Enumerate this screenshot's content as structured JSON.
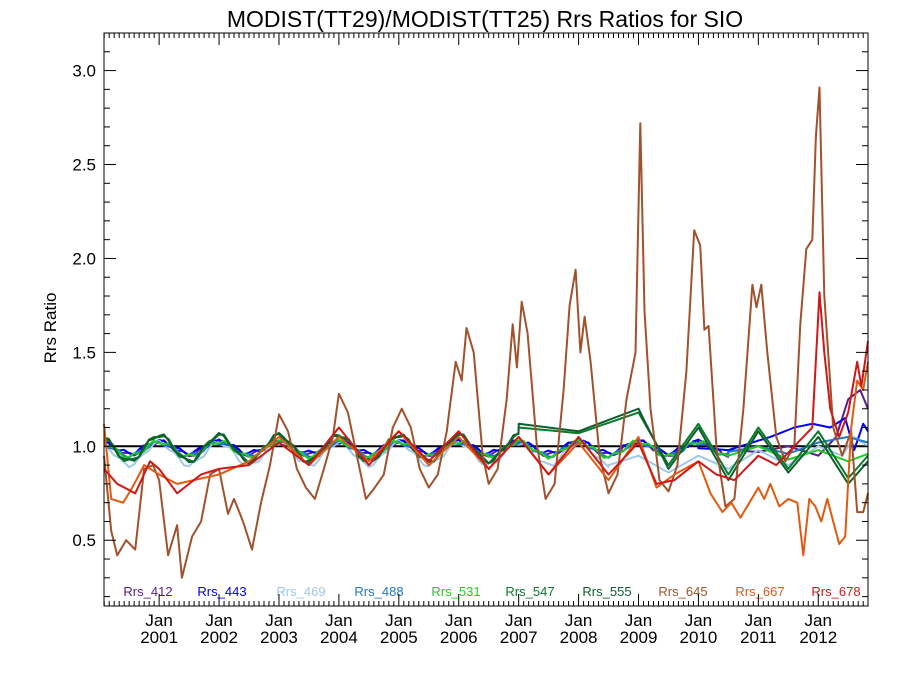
{
  "chart_data": {
    "type": "line",
    "title": "MODIST(TT29)/MODIST(TT25)  Rrs Ratios for SIO",
    "xlabel": "",
    "ylabel": "Rrs Ratio",
    "xlim": [
      2000.08,
      2012.83
    ],
    "ylim": [
      0.15,
      3.2
    ],
    "yticks": [
      0.5,
      1.0,
      1.5,
      2.0,
      2.5,
      3.0
    ],
    "ytick_labels": [
      "0.5",
      "1.0",
      "1.5",
      "2.0",
      "2.5",
      "3.0"
    ],
    "xticks": [
      2001,
      2002,
      2003,
      2004,
      2005,
      2006,
      2007,
      2008,
      2009,
      2010,
      2011,
      2012
    ],
    "xtick_labels": [
      [
        "Jan",
        "2001"
      ],
      [
        "Jan",
        "2002"
      ],
      [
        "Jan",
        "2003"
      ],
      [
        "Jan",
        "2004"
      ],
      [
        "Jan",
        "2005"
      ],
      [
        "Jan",
        "2006"
      ],
      [
        "Jan",
        "2007"
      ],
      [
        "Jan",
        "2008"
      ],
      [
        "Jan",
        "2009"
      ],
      [
        "Jan",
        "2010"
      ],
      [
        "Jan",
        "2011"
      ],
      [
        "Jan",
        "2012"
      ]
    ],
    "reference_line": 1.0,
    "legend_position": "bottom",
    "grid": false,
    "series": [
      {
        "name": "Rrs_412",
        "color": "#5b1a8f",
        "baseline": 0.99,
        "amp": 0.035,
        "points": [
          [
            2010.5,
            0.98
          ],
          [
            2011.0,
            0.97
          ],
          [
            2011.5,
            1.0
          ],
          [
            2012.0,
            0.95
          ],
          [
            2012.3,
            1.05
          ],
          [
            2012.5,
            1.25
          ],
          [
            2012.7,
            1.3
          ],
          [
            2012.83,
            1.2
          ]
        ]
      },
      {
        "name": "Rrs_443",
        "color": "#0000ee",
        "baseline": 0.995,
        "amp": 0.03,
        "points": [
          [
            2010.0,
            0.99
          ],
          [
            2010.5,
            0.98
          ],
          [
            2011.2,
            1.05
          ],
          [
            2011.6,
            1.1
          ],
          [
            2011.9,
            1.12
          ],
          [
            2012.2,
            1.1
          ],
          [
            2012.45,
            1.15
          ],
          [
            2012.6,
            0.98
          ],
          [
            2012.75,
            1.12
          ],
          [
            2012.83,
            1.08
          ]
        ]
      },
      {
        "name": "Rrs_469",
        "color": "#a0c8e8",
        "baseline": 0.96,
        "amp": 0.06,
        "points": [
          [
            2008.5,
            0.9
          ],
          [
            2009.0,
            0.95
          ],
          [
            2009.5,
            0.86
          ],
          [
            2010.0,
            0.95
          ],
          [
            2010.5,
            0.88
          ],
          [
            2011.0,
            0.98
          ],
          [
            2011.5,
            0.9
          ],
          [
            2012.0,
            1.0
          ],
          [
            2012.4,
            0.95
          ],
          [
            2012.6,
            1.05
          ],
          [
            2012.83,
            1.0
          ]
        ]
      },
      {
        "name": "Rrs_488",
        "color": "#1e78c8",
        "baseline": 0.985,
        "amp": 0.035,
        "points": [
          [
            2010.5,
            0.97
          ],
          [
            2011.0,
            1.0
          ],
          [
            2011.5,
            0.96
          ],
          [
            2012.0,
            1.02
          ],
          [
            2012.5,
            1.05
          ],
          [
            2012.83,
            1.02
          ]
        ]
      },
      {
        "name": "Rrs_531",
        "color": "#22cc22",
        "baseline": 0.985,
        "amp": 0.04,
        "points": [
          [
            2010.5,
            0.95
          ],
          [
            2011.0,
            1.0
          ],
          [
            2011.5,
            0.93
          ],
          [
            2012.0,
            0.98
          ],
          [
            2012.5,
            0.92
          ],
          [
            2012.83,
            0.96
          ]
        ]
      },
      {
        "name": "Rrs_547",
        "color": "#0a7a2a",
        "baseline": 0.99,
        "amp": 0.07,
        "points": [
          [
            2007.0,
            1.1
          ],
          [
            2008.0,
            1.07
          ],
          [
            2009.0,
            1.18
          ],
          [
            2009.5,
            0.9
          ],
          [
            2010.0,
            1.12
          ],
          [
            2010.5,
            0.85
          ],
          [
            2011.0,
            1.1
          ],
          [
            2011.5,
            0.88
          ],
          [
            2012.0,
            1.08
          ],
          [
            2012.5,
            0.83
          ],
          [
            2012.83,
            0.95
          ]
        ]
      },
      {
        "name": "Rrs_555",
        "color": "#0e5e2e",
        "baseline": 0.99,
        "amp": 0.07,
        "points": [
          [
            2007.0,
            1.12
          ],
          [
            2008.0,
            1.08
          ],
          [
            2009.0,
            1.2
          ],
          [
            2009.5,
            0.88
          ],
          [
            2010.0,
            1.1
          ],
          [
            2010.5,
            0.82
          ],
          [
            2011.0,
            1.08
          ],
          [
            2011.5,
            0.86
          ],
          [
            2012.0,
            1.05
          ],
          [
            2012.5,
            0.8
          ],
          [
            2012.83,
            0.92
          ]
        ]
      },
      {
        "name": "Rrs_645",
        "color": "#a0522d",
        "baseline": 0.85,
        "amp": 0.35,
        "points": [
          [
            2000.08,
            0.95
          ],
          [
            2000.2,
            0.55
          ],
          [
            2000.3,
            0.42
          ],
          [
            2000.45,
            0.5
          ],
          [
            2000.6,
            0.45
          ],
          [
            2000.75,
            0.88
          ],
          [
            2000.9,
            0.9
          ],
          [
            2001.0,
            0.82
          ],
          [
            2001.15,
            0.42
          ],
          [
            2001.3,
            0.58
          ],
          [
            2001.38,
            0.3
          ],
          [
            2001.55,
            0.52
          ],
          [
            2001.7,
            0.6
          ],
          [
            2001.85,
            0.85
          ],
          [
            2002.0,
            0.88
          ],
          [
            2002.15,
            0.64
          ],
          [
            2002.25,
            0.72
          ],
          [
            2002.4,
            0.6
          ],
          [
            2002.55,
            0.45
          ],
          [
            2002.7,
            0.7
          ],
          [
            2002.85,
            0.9
          ],
          [
            2003.0,
            1.17
          ],
          [
            2003.15,
            1.08
          ],
          [
            2003.3,
            0.88
          ],
          [
            2003.45,
            0.78
          ],
          [
            2003.6,
            0.72
          ],
          [
            2003.75,
            0.88
          ],
          [
            2003.9,
            1.05
          ],
          [
            2004.0,
            1.28
          ],
          [
            2004.15,
            1.18
          ],
          [
            2004.3,
            0.95
          ],
          [
            2004.45,
            0.72
          ],
          [
            2004.6,
            0.78
          ],
          [
            2004.75,
            0.85
          ],
          [
            2004.9,
            1.1
          ],
          [
            2005.05,
            1.2
          ],
          [
            2005.2,
            1.1
          ],
          [
            2005.35,
            0.88
          ],
          [
            2005.5,
            0.78
          ],
          [
            2005.65,
            0.85
          ],
          [
            2005.8,
            1.08
          ],
          [
            2005.95,
            1.45
          ],
          [
            2006.05,
            1.35
          ],
          [
            2006.13,
            1.63
          ],
          [
            2006.25,
            1.5
          ],
          [
            2006.4,
            0.95
          ],
          [
            2006.5,
            0.8
          ],
          [
            2006.65,
            0.88
          ],
          [
            2006.8,
            1.25
          ],
          [
            2006.9,
            1.65
          ],
          [
            2006.97,
            1.42
          ],
          [
            2007.05,
            1.77
          ],
          [
            2007.15,
            1.6
          ],
          [
            2007.3,
            1.02
          ],
          [
            2007.45,
            0.72
          ],
          [
            2007.6,
            0.8
          ],
          [
            2007.75,
            1.3
          ],
          [
            2007.85,
            1.75
          ],
          [
            2007.95,
            1.94
          ],
          [
            2008.03,
            1.5
          ],
          [
            2008.1,
            1.69
          ],
          [
            2008.2,
            1.45
          ],
          [
            2008.35,
            0.95
          ],
          [
            2008.5,
            0.75
          ],
          [
            2008.65,
            0.85
          ],
          [
            2008.8,
            1.25
          ],
          [
            2008.95,
            1.5
          ],
          [
            2009.03,
            2.72
          ],
          [
            2009.1,
            1.72
          ],
          [
            2009.2,
            1.2
          ],
          [
            2009.35,
            0.82
          ],
          [
            2009.5,
            0.76
          ],
          [
            2009.65,
            0.9
          ],
          [
            2009.8,
            1.4
          ],
          [
            2009.93,
            2.15
          ],
          [
            2010.03,
            2.07
          ],
          [
            2010.1,
            1.62
          ],
          [
            2010.17,
            1.64
          ],
          [
            2010.3,
            1.0
          ],
          [
            2010.45,
            0.68
          ],
          [
            2010.6,
            0.72
          ],
          [
            2010.75,
            1.2
          ],
          [
            2010.9,
            1.86
          ],
          [
            2010.97,
            1.74
          ],
          [
            2011.05,
            1.86
          ],
          [
            2011.15,
            1.5
          ],
          [
            2011.3,
            1.05
          ],
          [
            2011.45,
            0.92
          ],
          [
            2011.6,
            1.0
          ],
          [
            2011.7,
            1.65
          ],
          [
            2011.8,
            2.05
          ],
          [
            2011.9,
            2.1
          ],
          [
            2011.96,
            2.65
          ],
          [
            2012.02,
            2.91
          ],
          [
            2012.1,
            1.8
          ],
          [
            2012.25,
            1.1
          ],
          [
            2012.4,
            0.95
          ],
          [
            2012.55,
            1.08
          ],
          [
            2012.65,
            0.65
          ],
          [
            2012.75,
            0.65
          ],
          [
            2012.83,
            0.75
          ]
        ]
      },
      {
        "name": "Rrs_667",
        "color": "#e05a10",
        "baseline": 0.84,
        "amp": 0.12,
        "points": [
          [
            2000.08,
            1.12
          ],
          [
            2000.2,
            0.72
          ],
          [
            2000.4,
            0.7
          ],
          [
            2000.55,
            0.78
          ],
          [
            2000.75,
            0.9
          ],
          [
            2001.0,
            0.85
          ],
          [
            2001.3,
            0.8
          ],
          [
            2002.0,
            0.85
          ],
          [
            2002.5,
            0.92
          ],
          [
            2003.0,
            1.05
          ],
          [
            2003.5,
            0.9
          ],
          [
            2004.0,
            1.05
          ],
          [
            2004.5,
            0.92
          ],
          [
            2005.0,
            1.08
          ],
          [
            2005.5,
            0.9
          ],
          [
            2006.0,
            1.05
          ],
          [
            2006.5,
            0.88
          ],
          [
            2007.0,
            1.05
          ],
          [
            2007.5,
            0.85
          ],
          [
            2008.0,
            1.02
          ],
          [
            2008.5,
            0.82
          ],
          [
            2009.0,
            1.05
          ],
          [
            2009.3,
            0.78
          ],
          [
            2009.6,
            0.85
          ],
          [
            2010.0,
            0.92
          ],
          [
            2010.2,
            0.75
          ],
          [
            2010.4,
            0.65
          ],
          [
            2010.55,
            0.7
          ],
          [
            2010.7,
            0.62
          ],
          [
            2010.85,
            0.7
          ],
          [
            2011.0,
            0.78
          ],
          [
            2011.1,
            0.72
          ],
          [
            2011.2,
            0.8
          ],
          [
            2011.35,
            0.68
          ],
          [
            2011.5,
            0.72
          ],
          [
            2011.65,
            0.7
          ],
          [
            2011.75,
            0.42
          ],
          [
            2011.85,
            0.72
          ],
          [
            2011.95,
            0.68
          ],
          [
            2012.05,
            0.6
          ],
          [
            2012.15,
            0.72
          ],
          [
            2012.25,
            0.6
          ],
          [
            2012.35,
            0.48
          ],
          [
            2012.45,
            0.52
          ],
          [
            2012.55,
            1.1
          ],
          [
            2012.65,
            1.35
          ],
          [
            2012.75,
            1.3
          ],
          [
            2012.83,
            1.45
          ]
        ]
      },
      {
        "name": "Rrs_678",
        "color": "#d01818",
        "baseline": 0.92,
        "amp": 0.12,
        "points": [
          [
            2000.08,
            0.88
          ],
          [
            2000.3,
            0.8
          ],
          [
            2000.6,
            0.75
          ],
          [
            2000.85,
            0.92
          ],
          [
            2001.0,
            0.88
          ],
          [
            2001.3,
            0.75
          ],
          [
            2001.7,
            0.85
          ],
          [
            2002.0,
            0.88
          ],
          [
            2002.5,
            0.9
          ],
          [
            2003.0,
            1.02
          ],
          [
            2003.5,
            0.9
          ],
          [
            2004.0,
            1.1
          ],
          [
            2004.5,
            0.9
          ],
          [
            2005.0,
            1.08
          ],
          [
            2005.5,
            0.92
          ],
          [
            2006.0,
            1.08
          ],
          [
            2006.5,
            0.88
          ],
          [
            2007.0,
            1.05
          ],
          [
            2007.5,
            0.85
          ],
          [
            2008.0,
            1.05
          ],
          [
            2008.5,
            0.85
          ],
          [
            2009.0,
            1.02
          ],
          [
            2009.3,
            0.8
          ],
          [
            2009.6,
            0.82
          ],
          [
            2010.0,
            0.92
          ],
          [
            2010.3,
            0.85
          ],
          [
            2010.6,
            0.82
          ],
          [
            2011.0,
            0.95
          ],
          [
            2011.3,
            0.9
          ],
          [
            2011.6,
            1.0
          ],
          [
            2011.9,
            1.1
          ],
          [
            2012.02,
            1.82
          ],
          [
            2012.1,
            1.5
          ],
          [
            2012.2,
            1.2
          ],
          [
            2012.35,
            1.05
          ],
          [
            2012.5,
            1.18
          ],
          [
            2012.65,
            1.45
          ],
          [
            2012.72,
            1.32
          ],
          [
            2012.83,
            1.56
          ]
        ]
      }
    ]
  }
}
